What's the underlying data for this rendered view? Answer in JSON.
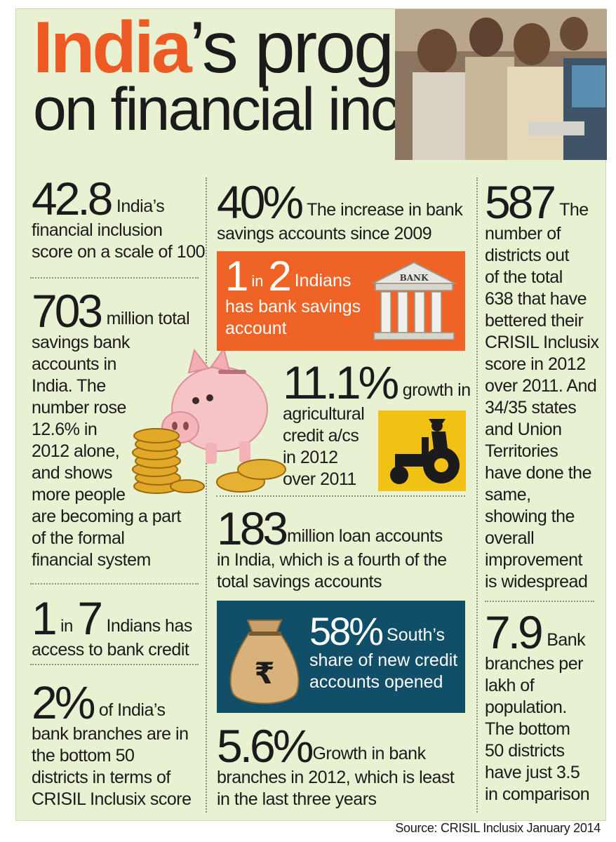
{
  "title": {
    "highlight": "India",
    "line1_rest": "’s progress",
    "line2": "on financial inclusion"
  },
  "stats": {
    "score": {
      "number": "42.8",
      "text_a": "India’s",
      "text_b": "financial inclusion",
      "text_c": "score on a scale of 100"
    },
    "accounts": {
      "number": "703",
      "lines": [
        "million total",
        "savings bank",
        "accounts in",
        "India. The",
        "number rose",
        "12.6% in",
        "2012 alone,",
        "and shows",
        "more people",
        "are becoming a part",
        "of the  formal",
        "financial system"
      ]
    },
    "credit_access": {
      "n1": "1",
      "in": "in",
      "n2": "7",
      "text_a": "Indians has",
      "text_b": "access to bank credit"
    },
    "bottom_branches": {
      "number": "2%",
      "lines": [
        "of India’s",
        "bank branches are in",
        "the bottom 50",
        "districts in terms of",
        "CRISIL Inclusix score"
      ]
    },
    "increase": {
      "number": "40%",
      "text_a": "The increase in bank",
      "text_b": "savings accounts since 2009"
    },
    "one_in_two": {
      "n1": "1",
      "in": "in",
      "n2": "2",
      "text_a": "Indians",
      "text_b": "has bank savings",
      "text_c": "account",
      "bank_sign": "BANK"
    },
    "agri": {
      "number": "11.1%",
      "text_a": "growth in",
      "lines": [
        "agricultural",
        "credit a/cs",
        "in 2012",
        "over 2011"
      ]
    },
    "loans": {
      "number": "183",
      "text_a": "million loan accounts",
      "text_b": "in India, which is a fourth of the",
      "text_c": "total savings accounts"
    },
    "south": {
      "number": "58%",
      "text_a": "South’s",
      "text_b": "share of new credit",
      "text_c": "accounts opened",
      "rupee": "₹"
    },
    "branch_growth": {
      "number": "5.6%",
      "text_a": "Growth in bank",
      "text_b": "branches in 2012, which is least",
      "text_c": "in the last three years"
    },
    "districts": {
      "number": "587",
      "text_a": "The",
      "lines": [
        "number of",
        "districts out",
        "of the total",
        "638 that have",
        "bettered their",
        "CRISIL Inclusix",
        "score in 2012",
        "over 2011. And",
        "34/35 states",
        "and Union",
        "Territories",
        "have done the",
        "same,",
        "showing the",
        "overall",
        "improvement",
        "is widespread"
      ]
    },
    "per_lakh": {
      "number": "7.9",
      "text_a": "Bank",
      "lines": [
        "branches per",
        "lakh of",
        "population.",
        "The bottom",
        "50 districts",
        "have just 3.5",
        "in comparison"
      ]
    }
  },
  "source": "Source: CRISIL Inclusix January 2014",
  "colors": {
    "background": "#e9f1d3",
    "accent_orange": "#ee5a24",
    "teal": "#114f69",
    "tractor_yellow": "#f2c116"
  }
}
